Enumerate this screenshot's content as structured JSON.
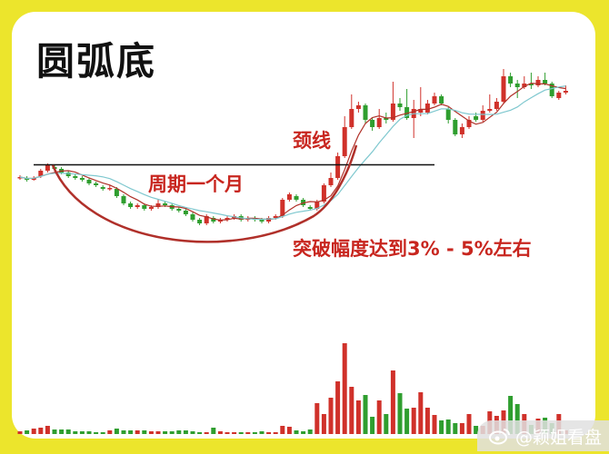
{
  "title": "圆弧底",
  "annotations": {
    "neckline": "颈线",
    "period": "周期一个月",
    "breakout": "突破幅度达到3% - 5%左右"
  },
  "watermark": {
    "icon": "weibo-icon",
    "text": "@颖姐看盘"
  },
  "colors": {
    "background": "#ece52c",
    "up": "#d0312a",
    "down": "#2f9e2f",
    "annotation": "#c8261f",
    "ma_short": "#b03028",
    "ma_long": "#7fc8cf"
  },
  "chart_data": {
    "type": "candlestick",
    "title": "圆弧底",
    "candles_ohlc": [
      [
        52,
        52.5,
        53.5,
        51
      ],
      [
        52,
        51,
        53,
        50
      ],
      [
        51,
        52,
        53,
        50.5
      ],
      [
        53,
        56,
        57,
        52
      ],
      [
        56,
        59,
        60,
        55
      ],
      [
        58,
        57,
        59,
        56
      ],
      [
        57,
        55,
        58,
        54
      ],
      [
        55,
        53,
        56,
        52
      ],
      [
        53,
        52,
        54,
        51
      ],
      [
        52,
        51,
        53,
        50
      ],
      [
        51,
        49,
        52,
        48
      ],
      [
        49,
        48,
        50,
        47
      ],
      [
        47,
        46,
        48,
        45
      ],
      [
        46,
        46.5,
        48,
        45
      ],
      [
        46,
        42,
        47,
        41
      ],
      [
        42,
        38,
        43,
        37
      ],
      [
        38,
        36,
        39,
        35
      ],
      [
        36,
        37,
        38,
        35
      ],
      [
        37,
        35,
        38,
        34
      ],
      [
        35,
        36,
        37,
        34
      ],
      [
        36,
        38,
        40,
        35
      ],
      [
        38,
        37,
        39,
        36
      ],
      [
        37,
        35,
        38,
        34
      ],
      [
        35,
        34,
        36,
        33
      ],
      [
        34,
        32,
        35,
        31
      ],
      [
        32,
        29,
        33,
        28
      ],
      [
        29,
        27,
        30,
        26
      ],
      [
        27,
        31,
        32,
        26
      ],
      [
        30,
        28,
        31,
        27
      ],
      [
        28,
        29,
        30,
        27
      ],
      [
        29,
        30,
        31,
        28
      ],
      [
        30,
        31,
        32,
        29
      ],
      [
        31,
        29,
        32,
        28
      ],
      [
        29,
        30,
        31,
        28
      ],
      [
        30,
        29,
        31,
        28
      ],
      [
        29,
        28,
        30,
        27
      ],
      [
        28,
        30,
        31,
        27
      ],
      [
        30,
        31,
        32,
        29
      ],
      [
        31,
        40,
        41,
        30
      ],
      [
        40,
        43,
        44,
        39
      ],
      [
        42,
        40,
        43,
        39
      ],
      [
        40,
        37,
        41,
        36
      ],
      [
        36,
        35,
        37,
        34
      ],
      [
        35,
        39,
        40,
        34
      ],
      [
        39,
        48,
        49,
        38
      ],
      [
        48,
        52,
        55,
        47
      ],
      [
        52,
        64,
        66,
        51
      ],
      [
        64,
        80,
        86,
        63
      ],
      [
        80,
        90,
        98,
        79
      ],
      [
        90,
        92,
        94,
        88
      ],
      [
        92,
        84,
        93,
        82
      ],
      [
        84,
        80,
        85,
        78
      ],
      [
        80,
        85,
        90,
        79
      ],
      [
        85,
        84,
        88,
        82
      ],
      [
        84,
        93,
        105,
        83
      ],
      [
        93,
        91,
        96,
        89
      ],
      [
        91,
        85,
        101,
        84
      ],
      [
        85,
        90,
        95,
        74
      ],
      [
        88,
        90,
        102,
        86
      ],
      [
        88,
        93,
        95,
        87
      ],
      [
        93,
        97,
        99,
        92
      ],
      [
        97,
        93,
        98,
        92
      ],
      [
        90,
        84,
        91,
        82
      ],
      [
        84,
        76,
        85,
        75
      ],
      [
        76,
        80,
        82,
        74
      ],
      [
        80,
        84,
        86,
        79
      ],
      [
        86,
        84,
        88,
        83
      ],
      [
        84,
        89,
        92,
        83
      ],
      [
        89,
        90,
        98,
        88
      ],
      [
        90,
        94,
        96,
        89
      ],
      [
        94,
        108,
        112,
        93
      ],
      [
        108,
        104,
        110,
        102
      ],
      [
        104,
        102,
        106,
        96
      ],
      [
        102,
        104,
        108,
        101
      ],
      [
        104,
        103,
        110,
        101
      ],
      [
        103,
        106,
        108,
        102
      ],
      [
        106,
        104,
        110,
        103
      ],
      [
        104,
        97,
        105,
        96
      ],
      [
        96,
        99,
        100,
        95
      ],
      [
        99,
        100,
        103,
        98
      ]
    ],
    "volume": [
      3,
      4,
      6,
      7,
      9,
      5,
      5,
      5,
      3,
      3,
      3,
      2,
      2,
      4,
      6,
      4,
      4,
      4,
      4,
      3,
      3,
      3,
      3,
      4,
      4,
      3,
      2,
      2,
      7,
      3,
      2,
      1,
      2,
      2,
      2,
      3,
      2,
      2,
      9,
      8,
      4,
      3,
      5,
      34,
      22,
      40,
      58,
      100,
      52,
      37,
      43,
      19,
      37,
      22,
      70,
      45,
      28,
      29,
      46,
      29,
      21,
      15,
      16,
      12,
      12,
      22,
      9,
      9,
      25,
      20,
      26,
      42,
      33,
      22,
      10,
      17,
      18,
      12,
      22,
      4
    ],
    "neckline_price": 59
  }
}
